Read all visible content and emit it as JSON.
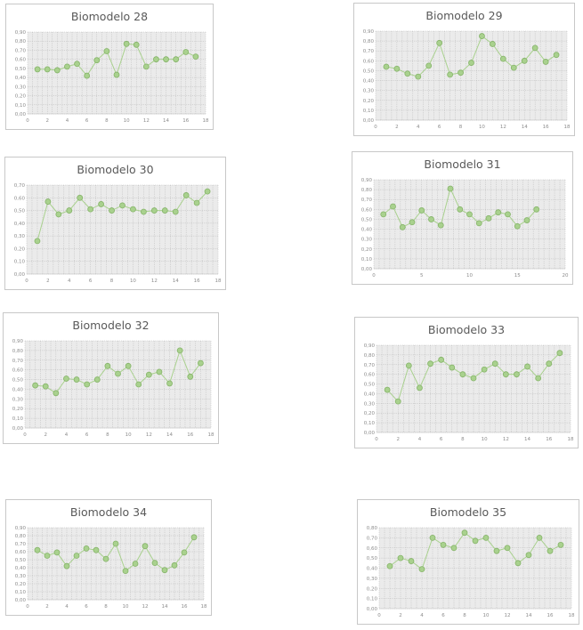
{
  "chart_data": [
    {
      "id": "b28",
      "type": "scatter",
      "title": "Biomodelo 28",
      "xlim": [
        0,
        18
      ],
      "xticks": [
        0,
        2,
        4,
        6,
        8,
        10,
        12,
        14,
        16,
        18
      ],
      "ylim": [
        0,
        0.9
      ],
      "yticks": [
        "0,00",
        "0,10",
        "0,20",
        "0,30",
        "0,40",
        "0,50",
        "0,60",
        "0,70",
        "0,80",
        "0,90"
      ],
      "x": [
        1,
        2,
        3,
        4,
        5,
        6,
        7,
        8,
        9,
        10,
        11,
        12,
        13,
        14,
        15,
        16,
        17
      ],
      "y": [
        0.49,
        0.49,
        0.48,
        0.52,
        0.55,
        0.42,
        0.59,
        0.69,
        0.43,
        0.77,
        0.76,
        0.52,
        0.6,
        0.6,
        0.6,
        0.68,
        0.63
      ]
    },
    {
      "id": "b29",
      "type": "scatter",
      "title": "Biomodelo 29",
      "xlim": [
        0,
        18
      ],
      "xticks": [
        0,
        2,
        4,
        6,
        8,
        10,
        12,
        14,
        16,
        18
      ],
      "ylim": [
        0,
        0.9
      ],
      "yticks": [
        "0,00",
        "0,10",
        "0,20",
        "0,30",
        "0,40",
        "0,50",
        "0,60",
        "0,70",
        "0,80",
        "0,90"
      ],
      "x": [
        1,
        2,
        3,
        4,
        5,
        6,
        7,
        8,
        9,
        10,
        11,
        12,
        13,
        14,
        15,
        16,
        17
      ],
      "y": [
        0.54,
        0.52,
        0.47,
        0.44,
        0.55,
        0.78,
        0.46,
        0.48,
        0.58,
        0.85,
        0.77,
        0.62,
        0.53,
        0.6,
        0.73,
        0.59,
        0.66
      ]
    },
    {
      "id": "b30",
      "type": "scatter",
      "title": "Biomodelo 30",
      "xlim": [
        0,
        18
      ],
      "xticks": [
        0,
        2,
        4,
        6,
        8,
        10,
        12,
        14,
        16,
        18
      ],
      "ylim": [
        0,
        0.7
      ],
      "yticks": [
        "0,00",
        "0,10",
        "0,20",
        "0,30",
        "0,40",
        "0,50",
        "0,60",
        "0,70"
      ],
      "x": [
        1,
        2,
        3,
        4,
        5,
        6,
        7,
        8,
        9,
        10,
        11,
        12,
        13,
        14,
        15,
        16,
        17
      ],
      "y": [
        0.26,
        0.57,
        0.47,
        0.5,
        0.6,
        0.51,
        0.55,
        0.5,
        0.54,
        0.51,
        0.49,
        0.5,
        0.5,
        0.49,
        0.62,
        0.56,
        0.65
      ]
    },
    {
      "id": "b31",
      "type": "scatter",
      "title": "Biomodelo 31",
      "xlim": [
        0,
        20
      ],
      "xticks": [
        0,
        5,
        10,
        15,
        20
      ],
      "ylim": [
        0,
        0.9
      ],
      "yticks": [
        "0,00",
        "0,10",
        "0,20",
        "0,30",
        "0,40",
        "0,50",
        "0,60",
        "0,70",
        "0,80",
        "0,90"
      ],
      "x": [
        1,
        2,
        3,
        4,
        5,
        6,
        7,
        8,
        9,
        10,
        11,
        12,
        13,
        14,
        15,
        16,
        17
      ],
      "y": [
        0.55,
        0.63,
        0.42,
        0.47,
        0.59,
        0.5,
        0.44,
        0.81,
        0.6,
        0.55,
        0.46,
        0.51,
        0.57,
        0.55,
        0.43,
        0.49,
        0.6
      ]
    },
    {
      "id": "b32",
      "type": "scatter",
      "title": "Biomodelo 32",
      "xlim": [
        0,
        18
      ],
      "xticks": [
        0,
        2,
        4,
        6,
        8,
        10,
        12,
        14,
        16,
        18
      ],
      "ylim": [
        0,
        0.9
      ],
      "yticks": [
        "0,00",
        "0,10",
        "0,20",
        "0,30",
        "0,40",
        "0,50",
        "0,60",
        "0,70",
        "0,80",
        "0,90"
      ],
      "x": [
        1,
        2,
        3,
        4,
        5,
        6,
        7,
        8,
        9,
        10,
        11,
        12,
        13,
        14,
        15,
        16,
        17
      ],
      "y": [
        0.44,
        0.43,
        0.36,
        0.51,
        0.5,
        0.45,
        0.5,
        0.64,
        0.56,
        0.64,
        0.45,
        0.55,
        0.58,
        0.46,
        0.8,
        0.53,
        0.67
      ]
    },
    {
      "id": "b33",
      "type": "scatter",
      "title": "Biomodelo 33",
      "xlim": [
        0,
        18
      ],
      "xticks": [
        0,
        2,
        4,
        6,
        8,
        10,
        12,
        14,
        16,
        18
      ],
      "ylim": [
        0,
        0.9
      ],
      "yticks": [
        "0,00",
        "0,10",
        "0,20",
        "0,30",
        "0,40",
        "0,50",
        "0,60",
        "0,70",
        "0,80",
        "0,90"
      ],
      "x": [
        1,
        2,
        3,
        4,
        5,
        6,
        7,
        8,
        9,
        10,
        11,
        12,
        13,
        14,
        15,
        16,
        17
      ],
      "y": [
        0.44,
        0.32,
        0.69,
        0.46,
        0.71,
        0.75,
        0.67,
        0.6,
        0.56,
        0.65,
        0.71,
        0.6,
        0.6,
        0.68,
        0.56,
        0.71,
        0.82
      ]
    },
    {
      "id": "b34",
      "type": "scatter",
      "title": "Biomodelo 34",
      "xlim": [
        0,
        18
      ],
      "xticks": [
        0,
        2,
        4,
        6,
        8,
        10,
        12,
        14,
        16,
        18
      ],
      "ylim": [
        0,
        0.9
      ],
      "yticks": [
        "0,00",
        "0,10",
        "0,20",
        "0,30",
        "0,40",
        "0,50",
        "0,60",
        "0,70",
        "0,80",
        "0,90"
      ],
      "x": [
        1,
        2,
        3,
        4,
        5,
        6,
        7,
        8,
        9,
        10,
        11,
        12,
        13,
        14,
        15,
        16,
        17
      ],
      "y": [
        0.62,
        0.55,
        0.59,
        0.42,
        0.55,
        0.64,
        0.62,
        0.51,
        0.7,
        0.36,
        0.45,
        0.67,
        0.46,
        0.37,
        0.43,
        0.59,
        0.78
      ]
    },
    {
      "id": "b35",
      "type": "scatter",
      "title": "Biomodelo 35",
      "xlim": [
        0,
        18
      ],
      "xticks": [
        0,
        2,
        4,
        6,
        8,
        10,
        12,
        14,
        16,
        18
      ],
      "ylim": [
        0,
        0.8
      ],
      "yticks": [
        "0,00",
        "0,10",
        "0,20",
        "0,30",
        "0,40",
        "0,50",
        "0,60",
        "0,70",
        "0,80"
      ],
      "x": [
        1,
        2,
        3,
        4,
        5,
        6,
        7,
        8,
        9,
        10,
        11,
        12,
        13,
        14,
        15,
        16,
        17
      ],
      "y": [
        0.42,
        0.5,
        0.47,
        0.39,
        0.7,
        0.63,
        0.6,
        0.75,
        0.67,
        0.7,
        0.57,
        0.6,
        0.45,
        0.53,
        0.7,
        0.57,
        0.63
      ]
    }
  ]
}
